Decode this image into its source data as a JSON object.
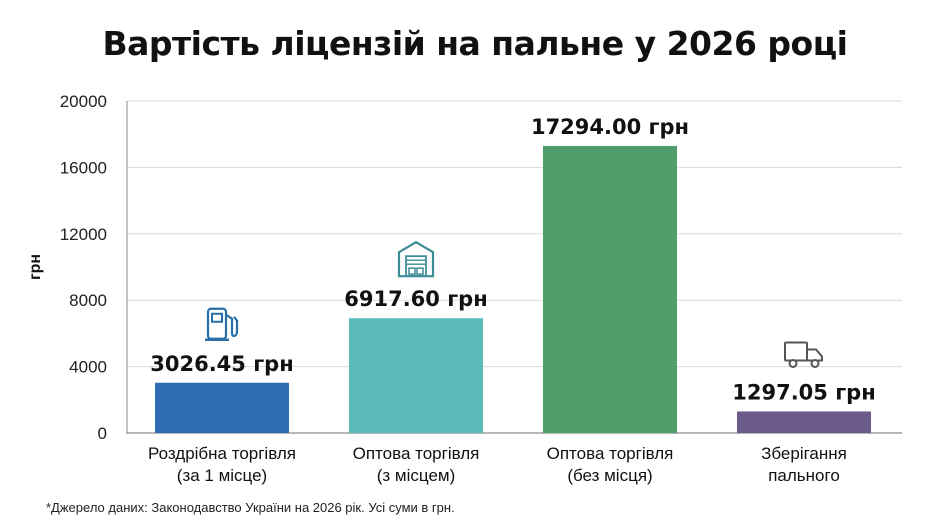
{
  "chart_data": {
    "type": "bar",
    "title": "Вартість ліцензій на пальне у 2026 році",
    "ylabel": "грн",
    "xlabel": "",
    "ylim": [
      0,
      20000
    ],
    "yticks": [
      "0",
      "4000",
      "8000",
      "12000",
      "16000",
      "20000"
    ],
    "grid": true,
    "categories": [
      [
        "Роздрібна торгівля",
        "(за 1 місце)"
      ],
      [
        "Оптова торгівля",
        "(з місцем)"
      ],
      [
        "Оптова торгівля",
        "(без місця)"
      ],
      [
        "Зберігання",
        "пального"
      ]
    ],
    "values": [
      3026.45,
      6917.6,
      17294.0,
      1297.05
    ],
    "value_labels": [
      "3026.45 грн",
      "6917.60 грн",
      "17294.00 грн",
      "1297.05 грн"
    ],
    "colors": [
      "#2f6db3",
      "#5cbcbc",
      "#4f9e6c",
      "#6b5b8b"
    ],
    "icons": [
      "fuel-pump-icon",
      "warehouse-icon",
      null,
      "truck-icon"
    ],
    "footnote": "*Джерело даних: Законодавство України на 2026 рік. Усі суми в грн."
  }
}
